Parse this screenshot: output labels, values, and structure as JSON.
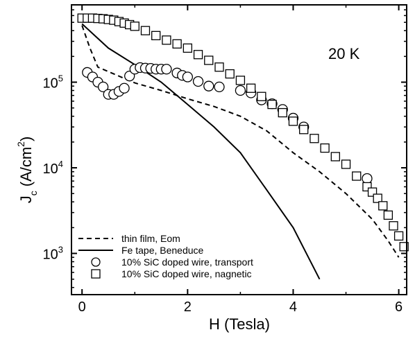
{
  "chart_data": {
    "type": "scatter",
    "title": "",
    "annotation": "20 K",
    "xlabel": "H (Tesla)",
    "ylabel_main": "J",
    "ylabel_sub": "c",
    "ylabel_unit": "(A/cm",
    "ylabel_sup": "2",
    "ylabel_close": ")",
    "xlim": [
      -0.2,
      6.15
    ],
    "ylim": [
      330,
      800000
    ],
    "yscale": "log",
    "grid": false,
    "legend_position": "bottom-left",
    "x_ticks": [
      {
        "value": 0,
        "label": "0"
      },
      {
        "value": 2,
        "label": "2"
      },
      {
        "value": 4,
        "label": "4"
      },
      {
        "value": 6,
        "label": "6"
      }
    ],
    "y_ticks": [
      {
        "value": 1000,
        "base": "10",
        "exp": "3"
      },
      {
        "value": 10000,
        "base": "10",
        "exp": "4"
      },
      {
        "value": 100000,
        "base": "10",
        "exp": "5"
      }
    ],
    "series": [
      {
        "name": "thin film, Eom",
        "style": "dashed-line",
        "x": [
          0,
          0.15,
          0.3,
          0.6,
          1.0,
          1.5,
          2.0,
          2.5,
          3.0,
          3.5,
          4.0,
          4.5,
          5.0,
          5.5,
          5.8,
          6.0
        ],
        "y": [
          460000,
          250000,
          150000,
          125000,
          98000,
          80000,
          64000,
          52000,
          40000,
          27000,
          15000,
          9000,
          5000,
          2500,
          1400,
          900
        ]
      },
      {
        "name": "Fe tape, Beneduce",
        "style": "solid-line",
        "x": [
          0,
          0.5,
          1.0,
          1.5,
          2.0,
          2.5,
          3.0,
          3.5,
          4.0,
          4.5
        ],
        "y": [
          480000,
          250000,
          160000,
          100000,
          55000,
          30000,
          15000,
          5500,
          2000,
          500
        ]
      },
      {
        "name": "10% SiC doped wire, transport",
        "style": "circle-marker",
        "x": [
          0.1,
          0.2,
          0.3,
          0.4,
          0.5,
          0.6,
          0.7,
          0.8,
          0.9,
          1.0,
          1.1,
          1.2,
          1.3,
          1.4,
          1.5,
          1.6,
          1.8,
          1.9,
          2.0,
          2.2,
          2.4,
          2.6,
          3.0,
          3.2,
          3.4,
          3.6,
          3.8,
          4.0,
          4.2,
          5.4
        ],
        "y": [
          130000,
          115000,
          100000,
          88000,
          72000,
          72000,
          78000,
          85000,
          118000,
          142000,
          148000,
          146000,
          145000,
          142000,
          142000,
          142000,
          128000,
          120000,
          115000,
          102000,
          90000,
          88000,
          80000,
          75000,
          62000,
          56000,
          48000,
          38000,
          30000,
          7500
        ]
      },
      {
        "name": "10% SiC doped wire, nagnetic",
        "style": "square-marker",
        "x": [
          0,
          0.1,
          0.2,
          0.3,
          0.4,
          0.5,
          0.6,
          0.7,
          0.8,
          0.9,
          1.0,
          1.2,
          1.4,
          1.6,
          1.8,
          2.0,
          2.2,
          2.4,
          2.6,
          2.8,
          3.0,
          3.2,
          3.4,
          3.6,
          3.8,
          4.0,
          4.2,
          4.4,
          4.6,
          4.8,
          5.0,
          5.2,
          5.4,
          5.5,
          5.6,
          5.7,
          5.8,
          5.9,
          6.0,
          6.1
        ],
        "y": [
          560000,
          560000,
          560000,
          555000,
          550000,
          540000,
          530000,
          510000,
          490000,
          470000,
          450000,
          400000,
          350000,
          310000,
          280000,
          250000,
          210000,
          180000,
          150000,
          125000,
          105000,
          85000,
          68000,
          55000,
          44000,
          35000,
          28000,
          22000,
          17000,
          13500,
          11000,
          8000,
          6000,
          5200,
          4400,
          3600,
          2800,
          2100,
          1600,
          1200
        ]
      }
    ]
  }
}
